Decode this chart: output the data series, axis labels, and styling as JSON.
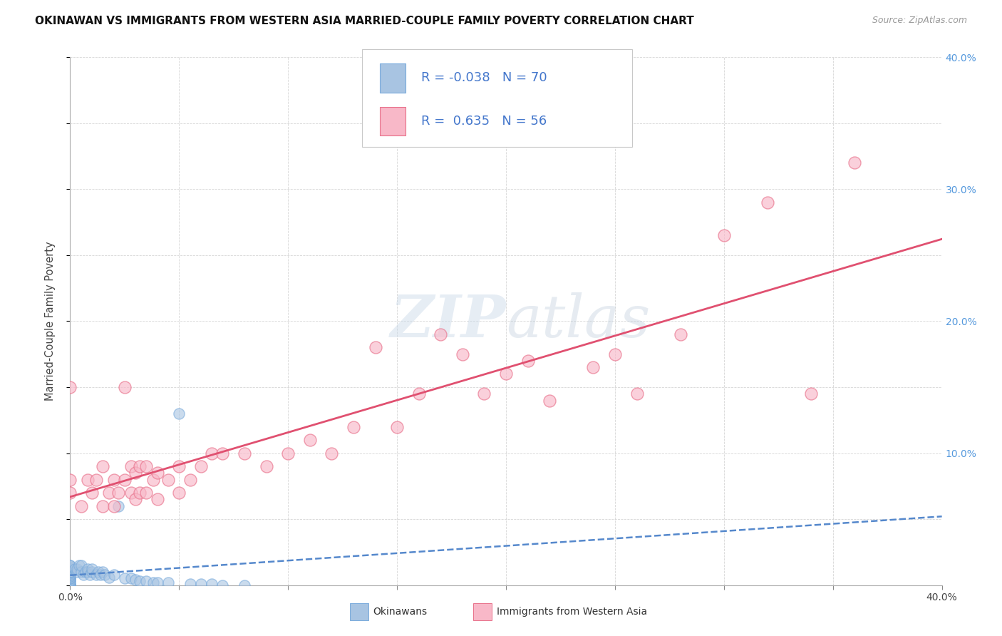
{
  "title": "OKINAWAN VS IMMIGRANTS FROM WESTERN ASIA MARRIED-COUPLE FAMILY POVERTY CORRELATION CHART",
  "source": "Source: ZipAtlas.com",
  "ylabel": "Married-Couple Family Poverty",
  "xlim": [
    0.0,
    0.4
  ],
  "ylim": [
    0.0,
    0.4
  ],
  "blue_facecolor": "#a8c4e2",
  "blue_edgecolor": "#7aabdc",
  "pink_facecolor": "#f8b8c8",
  "pink_edgecolor": "#e8708a",
  "blue_line_color": "#5588cc",
  "pink_line_color": "#e05070",
  "right_tick_color": "#5599dd",
  "grid_color": "#cccccc",
  "watermark_color": "#d5e0ec",
  "label1": "Okinawans",
  "label2": "Immigrants from Western Asia",
  "blue_r": -0.038,
  "blue_n": 70,
  "pink_r": 0.635,
  "pink_n": 56,
  "blue_scatter_x": [
    0.0,
    0.0,
    0.0,
    0.0,
    0.0,
    0.0,
    0.0,
    0.0,
    0.0,
    0.0,
    0.0,
    0.0,
    0.0,
    0.0,
    0.0,
    0.0,
    0.0,
    0.0,
    0.0,
    0.0,
    0.0,
    0.0,
    0.0,
    0.0,
    0.0,
    0.0,
    0.0,
    0.0,
    0.0,
    0.0,
    0.0,
    0.0,
    0.0,
    0.0,
    0.0,
    0.002,
    0.003,
    0.003,
    0.004,
    0.005,
    0.005,
    0.006,
    0.007,
    0.008,
    0.008,
    0.009,
    0.01,
    0.01,
    0.012,
    0.013,
    0.014,
    0.015,
    0.016,
    0.018,
    0.02,
    0.022,
    0.025,
    0.028,
    0.03,
    0.032,
    0.035,
    0.038,
    0.04,
    0.045,
    0.05,
    0.055,
    0.06,
    0.065,
    0.07,
    0.08
  ],
  "blue_scatter_y": [
    0.0,
    0.0,
    0.0,
    0.0,
    0.0,
    0.0,
    0.0,
    0.0,
    0.0,
    0.0,
    0.0,
    0.0,
    0.002,
    0.003,
    0.003,
    0.004,
    0.005,
    0.005,
    0.006,
    0.007,
    0.007,
    0.008,
    0.008,
    0.009,
    0.01,
    0.01,
    0.01,
    0.01,
    0.01,
    0.012,
    0.012,
    0.013,
    0.014,
    0.015,
    0.015,
    0.012,
    0.01,
    0.012,
    0.015,
    0.01,
    0.015,
    0.008,
    0.01,
    0.01,
    0.012,
    0.008,
    0.01,
    0.012,
    0.008,
    0.01,
    0.008,
    0.01,
    0.008,
    0.006,
    0.008,
    0.06,
    0.005,
    0.005,
    0.004,
    0.003,
    0.003,
    0.002,
    0.002,
    0.002,
    0.13,
    0.001,
    0.001,
    0.001,
    0.0,
    0.0
  ],
  "pink_scatter_x": [
    0.0,
    0.0,
    0.0,
    0.005,
    0.008,
    0.01,
    0.012,
    0.015,
    0.015,
    0.018,
    0.02,
    0.02,
    0.022,
    0.025,
    0.025,
    0.028,
    0.028,
    0.03,
    0.03,
    0.032,
    0.032,
    0.035,
    0.035,
    0.038,
    0.04,
    0.04,
    0.045,
    0.05,
    0.05,
    0.055,
    0.06,
    0.065,
    0.07,
    0.08,
    0.09,
    0.1,
    0.11,
    0.12,
    0.13,
    0.14,
    0.15,
    0.16,
    0.17,
    0.18,
    0.19,
    0.2,
    0.21,
    0.22,
    0.24,
    0.25,
    0.26,
    0.28,
    0.3,
    0.32,
    0.34,
    0.36
  ],
  "pink_scatter_y": [
    0.07,
    0.08,
    0.15,
    0.06,
    0.08,
    0.07,
    0.08,
    0.06,
    0.09,
    0.07,
    0.06,
    0.08,
    0.07,
    0.08,
    0.15,
    0.07,
    0.09,
    0.065,
    0.085,
    0.07,
    0.09,
    0.07,
    0.09,
    0.08,
    0.065,
    0.085,
    0.08,
    0.07,
    0.09,
    0.08,
    0.09,
    0.1,
    0.1,
    0.1,
    0.09,
    0.1,
    0.11,
    0.1,
    0.12,
    0.18,
    0.12,
    0.145,
    0.19,
    0.175,
    0.145,
    0.16,
    0.17,
    0.14,
    0.165,
    0.175,
    0.145,
    0.19,
    0.265,
    0.29,
    0.145,
    0.32
  ]
}
